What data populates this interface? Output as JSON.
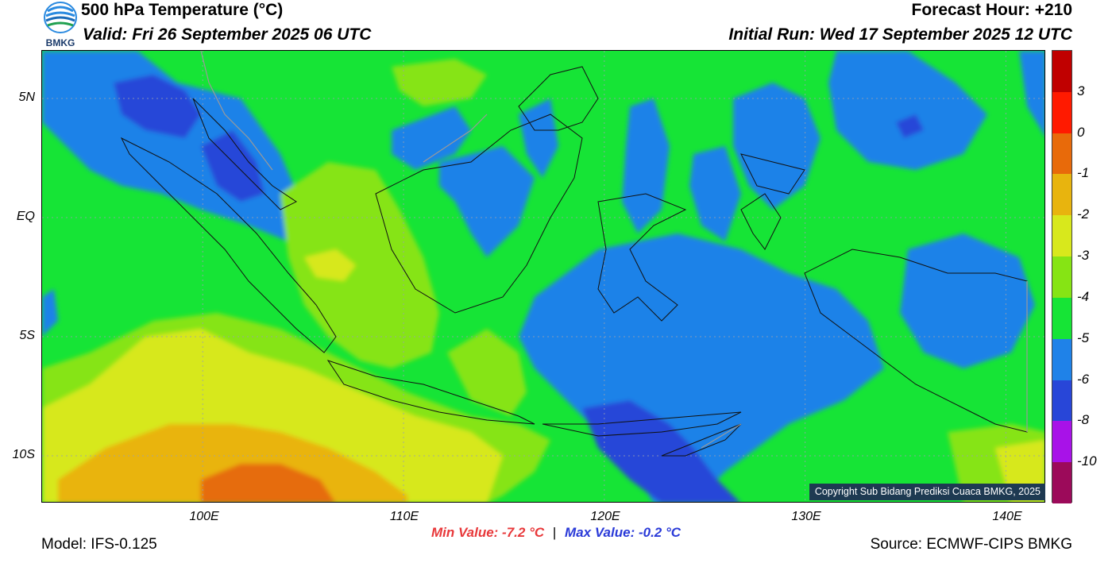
{
  "header": {
    "title": "500 hPa Temperature (°C)",
    "valid": "Valid: Fri 26 September 2025 06 UTC",
    "forecast_hour": "Forecast Hour: +210",
    "initial_run": "Initial Run: Wed 17 September 2025 12 UTC"
  },
  "logo": {
    "text": "BMKG",
    "icon": "bmkg-logo-icon"
  },
  "map": {
    "lat_labels": [
      "5N",
      "EQ",
      "5S",
      "10S"
    ],
    "lon_labels": [
      "100E",
      "110E",
      "120E",
      "130E",
      "140E"
    ],
    "lon_range": [
      92,
      142
    ],
    "lat_range": [
      -12,
      7
    ],
    "gridlines": true,
    "colors": {
      "v_m8": "#2846d8",
      "v_m6": "#1f82e8",
      "v_m5": "#16e436",
      "v_m4": "#86e414",
      "v_m3": "#d7e81c",
      "v_m2": "#e9b40e",
      "v_m1": "#e66c0a",
      "v_0": "#ec2a0a"
    }
  },
  "colorbar": {
    "labels": [
      "3",
      "0",
      "-1",
      "-2",
      "-3",
      "-4",
      "-5",
      "-6",
      "-8",
      "-10"
    ],
    "colors": [
      "#c00000",
      "#ff1a00",
      "#e86a0a",
      "#e8b40e",
      "#d8e81c",
      "#86e414",
      "#16e436",
      "#1f82e8",
      "#2846d8",
      "#a812e8",
      "#9c0a5a"
    ]
  },
  "stats": {
    "min_value": "Min Value: -7.2 °C",
    "separator": "|",
    "max_value": "Max Value: -0.2 °C"
  },
  "footer": {
    "model": "Model: IFS-0.125",
    "source": "Source: ECMWF-CIPS BMKG",
    "copyright": "Copyright Sub Bidang Prediksi Cuaca BMKG, 2025"
  }
}
